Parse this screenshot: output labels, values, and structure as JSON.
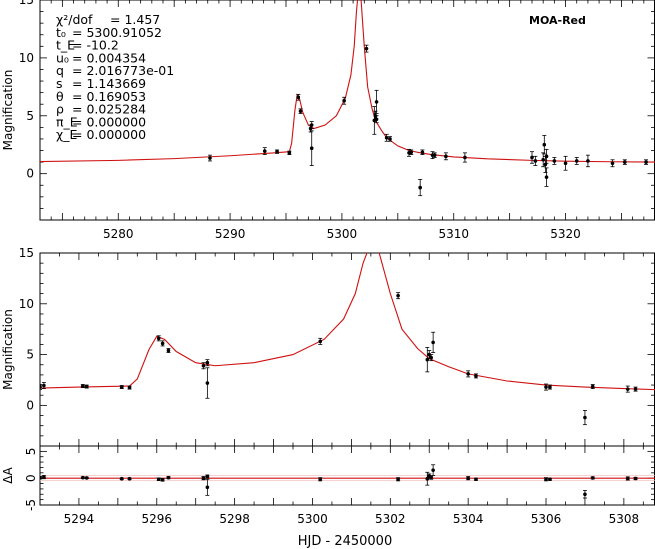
{
  "chart_data": {
    "type": "scatter",
    "dataset_label": "MOA-Red",
    "xlabel": "HJD - 2450000",
    "model_color": "#d01010",
    "point_color": "#000000",
    "parameters": [
      {
        "name": "χ²/dof",
        "value": "= 1.457"
      },
      {
        "name": "t₀",
        "value": "= 5300.91052"
      },
      {
        "name": "t_E",
        "value": "= -10.2"
      },
      {
        "name": "u₀",
        "value": "= 0.004354"
      },
      {
        "name": "q",
        "value": "= 2.016773e-01"
      },
      {
        "name": "s",
        "value": "= 1.143669"
      },
      {
        "name": "θ",
        "value": "= 0.169053"
      },
      {
        "name": "ρ",
        "value": "= 0.025284"
      },
      {
        "name": "π_E",
        "value": "= 0.000000"
      },
      {
        "name": "χ_E",
        "value": "= 0.000000"
      }
    ],
    "panels": [
      {
        "id": "full",
        "ylabel": "Magnification",
        "xlim": [
          5273,
          5328
        ],
        "ylim": [
          -4,
          15
        ],
        "xticks": [
          5280,
          5290,
          5300,
          5310,
          5320
        ],
        "yticks": [
          0,
          5,
          10,
          15
        ],
        "model": {
          "x": [
            5273,
            5280,
            5285,
            5290,
            5294,
            5295.3,
            5295.5,
            5295.8,
            5296.0,
            5296.2,
            5296.5,
            5297.0,
            5297.5,
            5298.5,
            5299.5,
            5300.3,
            5300.8,
            5301.1,
            5301.3,
            5301.45,
            5301.55,
            5301.7,
            5302.0,
            5302.3,
            5302.7,
            5303.0,
            5303.5,
            5304.0,
            5305.0,
            5306.0,
            5307.0,
            5308.0,
            5310.0,
            5313.0,
            5317.0,
            5320.0,
            5324.0,
            5328.0
          ],
          "y": [
            1.05,
            1.15,
            1.3,
            1.55,
            1.8,
            1.9,
            2.6,
            5.5,
            6.8,
            6.5,
            5.3,
            4.2,
            3.9,
            4.2,
            5.0,
            6.5,
            8.5,
            11.0,
            14.0,
            15.5,
            15.5,
            15.2,
            11.0,
            7.5,
            5.6,
            4.6,
            3.8,
            3.1,
            2.4,
            2.0,
            1.8,
            1.65,
            1.45,
            1.28,
            1.15,
            1.08,
            1.03,
            1.0
          ]
        },
        "points": [
          {
            "x": 5288.2,
            "y": 1.35,
            "err": 0.25
          },
          {
            "x": 5293.1,
            "y": 1.95,
            "err": 0.3
          },
          {
            "x": 5294.2,
            "y": 1.9,
            "err": 0.15
          },
          {
            "x": 5295.3,
            "y": 1.8,
            "err": 0.15
          },
          {
            "x": 5296.1,
            "y": 6.6,
            "err": 0.25
          },
          {
            "x": 5296.3,
            "y": 5.4,
            "err": 0.2
          },
          {
            "x": 5297.2,
            "y": 3.9,
            "err": 0.3
          },
          {
            "x": 5297.3,
            "y": 4.2,
            "err": 0.3
          },
          {
            "x": 5297.3,
            "y": 2.2,
            "err": 1.5
          },
          {
            "x": 5300.2,
            "y": 6.3,
            "err": 0.3
          },
          {
            "x": 5302.2,
            "y": 10.8,
            "err": 0.3
          },
          {
            "x": 5302.9,
            "y": 4.6,
            "err": 1.2
          },
          {
            "x": 5303.0,
            "y": 5.0,
            "err": 0.4
          },
          {
            "x": 5303.1,
            "y": 6.2,
            "err": 1.0
          },
          {
            "x": 5303.1,
            "y": 4.7,
            "err": 0.3
          },
          {
            "x": 5304.0,
            "y": 3.1,
            "err": 0.3
          },
          {
            "x": 5304.3,
            "y": 3.0,
            "err": 0.2
          },
          {
            "x": 5306.0,
            "y": 1.8,
            "err": 0.3
          },
          {
            "x": 5306.2,
            "y": 1.85,
            "err": 0.2
          },
          {
            "x": 5307.0,
            "y": -1.2,
            "err": 0.7
          },
          {
            "x": 5307.2,
            "y": 1.85,
            "err": 0.2
          },
          {
            "x": 5308.1,
            "y": 1.6,
            "err": 0.3
          },
          {
            "x": 5308.3,
            "y": 1.6,
            "err": 0.2
          },
          {
            "x": 5309.3,
            "y": 1.5,
            "err": 0.3
          },
          {
            "x": 5311.0,
            "y": 1.4,
            "err": 0.4
          },
          {
            "x": 5317.0,
            "y": 1.4,
            "err": 0.5
          },
          {
            "x": 5317.3,
            "y": 1.1,
            "err": 0.4
          },
          {
            "x": 5318.0,
            "y": 1.2,
            "err": 0.6
          },
          {
            "x": 5318.1,
            "y": 2.5,
            "err": 0.8
          },
          {
            "x": 5318.2,
            "y": 0.8,
            "err": 0.7
          },
          {
            "x": 5318.3,
            "y": 1.5,
            "err": 0.6
          },
          {
            "x": 5318.3,
            "y": -0.3,
            "err": 0.8
          },
          {
            "x": 5319.0,
            "y": 1.1,
            "err": 0.3
          },
          {
            "x": 5320.0,
            "y": 0.9,
            "err": 0.6
          },
          {
            "x": 5321.0,
            "y": 1.1,
            "err": 0.3
          },
          {
            "x": 5322.0,
            "y": 1.1,
            "err": 0.5
          },
          {
            "x": 5324.2,
            "y": 0.9,
            "err": 0.3
          },
          {
            "x": 5325.3,
            "y": 1.0,
            "err": 0.2
          },
          {
            "x": 5327.2,
            "y": 1.0,
            "err": 0.2
          }
        ]
      },
      {
        "id": "zoom",
        "ylabel": "Magnification",
        "xlim": [
          5293,
          5308.8
        ],
        "ylim": [
          -4,
          15
        ],
        "xticks": [],
        "yticks": [
          0,
          5,
          10,
          15
        ],
        "model": {
          "x": [
            5293,
            5294,
            5295.3,
            5295.5,
            5295.8,
            5296.0,
            5296.2,
            5296.5,
            5297.0,
            5297.5,
            5298.5,
            5299.5,
            5300.3,
            5300.8,
            5301.1,
            5301.3,
            5301.45,
            5301.55,
            5301.7,
            5302.0,
            5302.3,
            5302.7,
            5303.0,
            5303.5,
            5304.0,
            5305.0,
            5306.0,
            5307.0,
            5308.0,
            5308.8
          ],
          "y": [
            1.7,
            1.8,
            1.9,
            2.6,
            5.5,
            6.8,
            6.5,
            5.3,
            4.2,
            3.9,
            4.2,
            5.0,
            6.5,
            8.5,
            11.0,
            14.0,
            15.5,
            15.5,
            15.2,
            11.0,
            7.5,
            5.6,
            4.6,
            3.8,
            3.1,
            2.4,
            2.0,
            1.8,
            1.65,
            1.55
          ]
        },
        "points": [
          {
            "x": 5293.0,
            "y": 1.8,
            "err": 0.25
          },
          {
            "x": 5293.1,
            "y": 1.95,
            "err": 0.3
          },
          {
            "x": 5294.1,
            "y": 1.9,
            "err": 0.15
          },
          {
            "x": 5294.2,
            "y": 1.85,
            "err": 0.15
          },
          {
            "x": 5295.1,
            "y": 1.8,
            "err": 0.15
          },
          {
            "x": 5295.3,
            "y": 1.75,
            "err": 0.15
          },
          {
            "x": 5296.05,
            "y": 6.6,
            "err": 0.25
          },
          {
            "x": 5296.15,
            "y": 6.1,
            "err": 0.25
          },
          {
            "x": 5296.3,
            "y": 5.4,
            "err": 0.2
          },
          {
            "x": 5297.2,
            "y": 3.9,
            "err": 0.3
          },
          {
            "x": 5297.3,
            "y": 4.2,
            "err": 0.3
          },
          {
            "x": 5297.3,
            "y": 2.2,
            "err": 1.5
          },
          {
            "x": 5300.2,
            "y": 6.3,
            "err": 0.3
          },
          {
            "x": 5302.2,
            "y": 10.8,
            "err": 0.3
          },
          {
            "x": 5302.95,
            "y": 4.5,
            "err": 1.2
          },
          {
            "x": 5303.0,
            "y": 5.0,
            "err": 0.4
          },
          {
            "x": 5303.05,
            "y": 4.7,
            "err": 0.3
          },
          {
            "x": 5303.1,
            "y": 6.2,
            "err": 1.0
          },
          {
            "x": 5304.0,
            "y": 3.1,
            "err": 0.3
          },
          {
            "x": 5304.2,
            "y": 2.9,
            "err": 0.2
          },
          {
            "x": 5306.0,
            "y": 1.8,
            "err": 0.3
          },
          {
            "x": 5306.1,
            "y": 1.8,
            "err": 0.2
          },
          {
            "x": 5307.0,
            "y": -1.2,
            "err": 0.7
          },
          {
            "x": 5307.2,
            "y": 1.85,
            "err": 0.2
          },
          {
            "x": 5308.1,
            "y": 1.6,
            "err": 0.3
          },
          {
            "x": 5308.3,
            "y": 1.6,
            "err": 0.2
          }
        ]
      },
      {
        "id": "residuals",
        "ylabel": "ΔA",
        "xlim": [
          5293,
          5308.8
        ],
        "ylim": [
          -5,
          6
        ],
        "xticks": [
          5294,
          5296,
          5298,
          5300,
          5302,
          5304,
          5306,
          5308
        ],
        "yticks": [
          -5,
          0,
          5
        ],
        "model": {
          "x": [
            5293,
            5308.8
          ],
          "y": [
            0,
            0
          ]
        },
        "points": [
          {
            "x": 5293.0,
            "y": 0.1,
            "err": 0.25
          },
          {
            "x": 5293.1,
            "y": 0.2,
            "err": 0.3
          },
          {
            "x": 5294.1,
            "y": 0.1,
            "err": 0.15
          },
          {
            "x": 5294.2,
            "y": 0.05,
            "err": 0.15
          },
          {
            "x": 5295.1,
            "y": -0.1,
            "err": 0.15
          },
          {
            "x": 5295.3,
            "y": -0.1,
            "err": 0.15
          },
          {
            "x": 5296.05,
            "y": -0.2,
            "err": 0.25
          },
          {
            "x": 5296.15,
            "y": -0.3,
            "err": 0.25
          },
          {
            "x": 5296.3,
            "y": 0.1,
            "err": 0.2
          },
          {
            "x": 5297.2,
            "y": 0.0,
            "err": 0.3
          },
          {
            "x": 5297.3,
            "y": 0.3,
            "err": 0.3
          },
          {
            "x": 5297.3,
            "y": -1.7,
            "err": 1.5
          },
          {
            "x": 5300.2,
            "y": -0.2,
            "err": 0.3
          },
          {
            "x": 5302.2,
            "y": -0.2,
            "err": 0.3
          },
          {
            "x": 5302.95,
            "y": -0.1,
            "err": 1.2
          },
          {
            "x": 5303.0,
            "y": 0.4,
            "err": 0.4
          },
          {
            "x": 5303.05,
            "y": 0.1,
            "err": 0.3
          },
          {
            "x": 5303.1,
            "y": 1.5,
            "err": 1.0
          },
          {
            "x": 5304.0,
            "y": 0.0,
            "err": 0.3
          },
          {
            "x": 5304.2,
            "y": -0.2,
            "err": 0.2
          },
          {
            "x": 5306.0,
            "y": -0.2,
            "err": 0.3
          },
          {
            "x": 5306.1,
            "y": -0.2,
            "err": 0.2
          },
          {
            "x": 5307.0,
            "y": -3.0,
            "err": 0.7
          },
          {
            "x": 5307.2,
            "y": 0.05,
            "err": 0.2
          },
          {
            "x": 5308.1,
            "y": -0.05,
            "err": 0.3
          },
          {
            "x": 5308.3,
            "y": -0.05,
            "err": 0.2
          }
        ]
      }
    ]
  }
}
